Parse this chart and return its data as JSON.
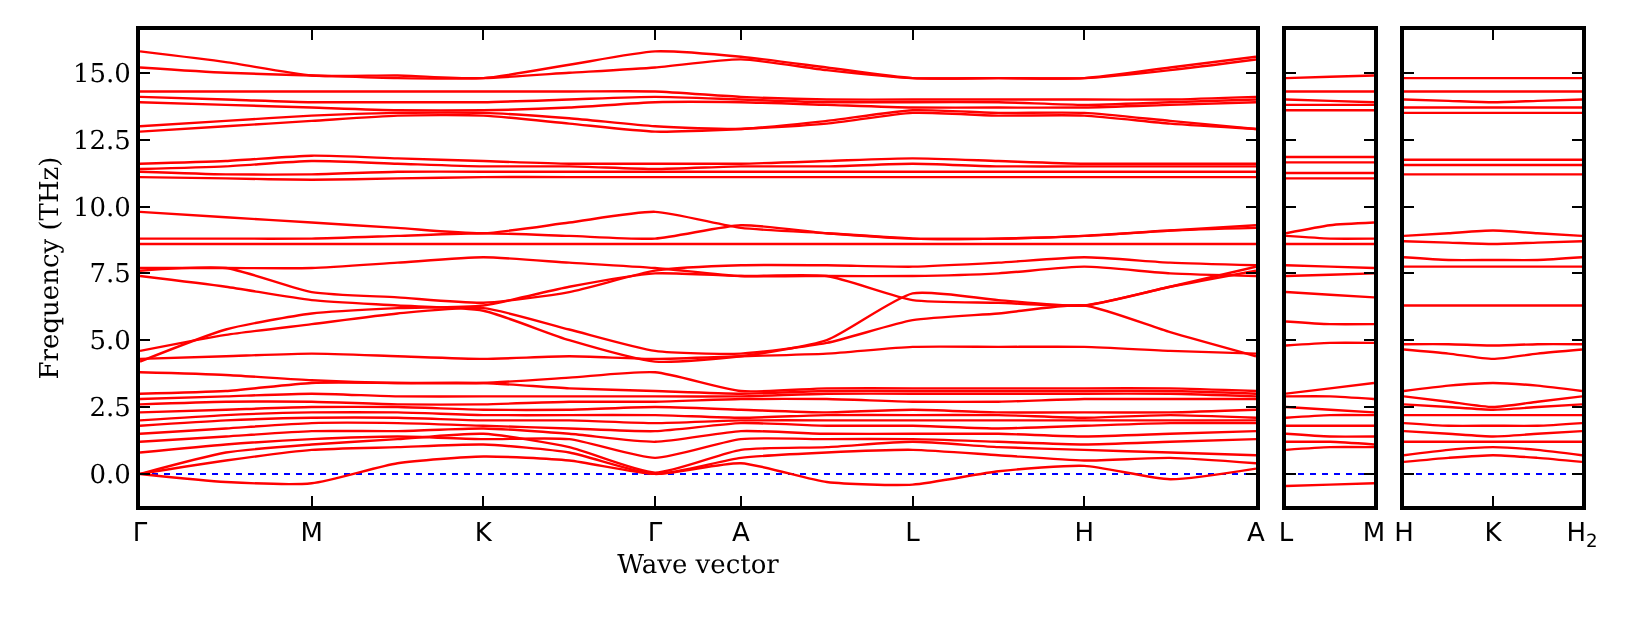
{
  "chart_data": [
    {
      "type": "line",
      "xlabel": "Wave vector",
      "ylabel": "Frequency (THz)",
      "ylim": [
        -1.2,
        16.6
      ],
      "categories": [
        "Γ",
        null,
        "M",
        null,
        "K",
        null,
        "Γ",
        "A",
        null,
        "L",
        null,
        "H",
        null,
        "A"
      ],
      "yticks": [
        {
          "value": 0,
          "label": "0.0"
        },
        {
          "value": 2.5,
          "label": "2.5"
        },
        {
          "value": 5,
          "label": "5.0"
        },
        {
          "value": 7.5,
          "label": "7.5"
        },
        {
          "value": 10,
          "label": "10.0"
        },
        {
          "value": 12.5,
          "label": "12.5"
        },
        {
          "value": 15,
          "label": "15.0"
        }
      ],
      "ref_lines": [
        {
          "axis": "y",
          "value": 0,
          "color": "#0000ff",
          "line_style": "dotted"
        }
      ],
      "series": [
        {
          "color": "#ff0000",
          "values": [
            0,
            -0.3,
            -0.35,
            0.4,
            0.65,
            0.5,
            0,
            0.4,
            -0.3,
            -0.4,
            0.1,
            0.3,
            -0.2,
            0.2
          ]
        },
        {
          "color": "#ff0000",
          "values": [
            0,
            0.5,
            0.9,
            1.0,
            1.1,
            0.8,
            0,
            0.6,
            0.8,
            0.9,
            0.7,
            0.5,
            0.6,
            0.4
          ]
        },
        {
          "color": "#ff0000",
          "values": [
            0,
            0.8,
            1.1,
            1.3,
            1.5,
            1.0,
            0.05,
            0.9,
            1.0,
            1.2,
            1.0,
            0.9,
            0.8,
            0.7
          ]
        },
        {
          "color": "#ff0000",
          "values": [
            0.8,
            1.1,
            1.3,
            1.4,
            1.3,
            1.3,
            0.6,
            1.3,
            1.3,
            1.3,
            1.2,
            1.1,
            1.2,
            1.3
          ]
        },
        {
          "color": "#ff0000",
          "values": [
            1.2,
            1.4,
            1.6,
            1.6,
            1.7,
            1.5,
            1.2,
            1.6,
            1.5,
            1.5,
            1.5,
            1.4,
            1.5,
            1.6
          ]
        },
        {
          "color": "#ff0000",
          "values": [
            1.5,
            1.7,
            1.9,
            1.9,
            1.8,
            1.7,
            1.6,
            1.9,
            1.8,
            1.8,
            1.7,
            1.8,
            1.9,
            1.9
          ]
        },
        {
          "color": "#ff0000",
          "values": [
            1.8,
            2.0,
            2.1,
            2.1,
            2.0,
            2.0,
            1.9,
            2.0,
            2.0,
            2.0,
            2.0,
            2.0,
            2.0,
            2.0
          ]
        },
        {
          "color": "#ff0000",
          "values": [
            2.0,
            2.2,
            2.3,
            2.3,
            2.2,
            2.2,
            2.2,
            2.1,
            2.2,
            2.2,
            2.2,
            2.1,
            2.2,
            2.1
          ]
        },
        {
          "color": "#ff0000",
          "values": [
            2.3,
            2.4,
            2.5,
            2.5,
            2.4,
            2.4,
            2.5,
            2.4,
            2.3,
            2.4,
            2.3,
            2.3,
            2.3,
            2.4
          ]
        },
        {
          "color": "#ff0000",
          "values": [
            2.6,
            2.7,
            2.7,
            2.6,
            2.6,
            2.7,
            2.7,
            2.8,
            2.8,
            2.7,
            2.7,
            2.8,
            2.8,
            2.8
          ]
        },
        {
          "color": "#ff0000",
          "values": [
            2.8,
            2.9,
            3.0,
            2.9,
            2.9,
            2.9,
            2.9,
            2.9,
            3.0,
            3.0,
            3.0,
            3.0,
            3.0,
            2.9
          ]
        },
        {
          "color": "#ff0000",
          "values": [
            3.0,
            3.1,
            3.4,
            3.4,
            3.4,
            3.2,
            3.1,
            3.0,
            3.1,
            3.1,
            3.1,
            3.1,
            3.1,
            3.0
          ]
        },
        {
          "color": "#ff0000",
          "values": [
            3.8,
            3.7,
            3.5,
            3.4,
            3.4,
            3.6,
            3.8,
            3.1,
            3.2,
            3.2,
            3.2,
            3.2,
            3.2,
            3.1
          ]
        },
        {
          "color": "#ff0000",
          "values": [
            4.3,
            4.4,
            4.5,
            4.4,
            4.3,
            4.4,
            4.3,
            4.4,
            4.5,
            4.75,
            4.75,
            4.75,
            4.6,
            4.5
          ]
        },
        {
          "color": "#ff0000",
          "values": [
            4.6,
            5.2,
            5.6,
            6.0,
            6.2,
            5.4,
            4.6,
            4.5,
            4.9,
            5.75,
            6.0,
            6.3,
            5.3,
            4.4
          ]
        },
        {
          "color": "#ff0000",
          "values": [
            4.2,
            5.4,
            6.0,
            6.2,
            6.3,
            7.0,
            7.5,
            7.4,
            7.4,
            6.5,
            6.4,
            6.3,
            7.0,
            7.6
          ]
        },
        {
          "color": "#ff0000",
          "values": [
            7.4,
            7.0,
            6.5,
            6.3,
            6.1,
            5.0,
            4.2,
            4.4,
            5.0,
            6.75,
            6.5,
            6.3,
            7.0,
            7.75
          ]
        },
        {
          "color": "#ff0000",
          "values": [
            7.6,
            7.7,
            6.8,
            6.6,
            6.4,
            6.8,
            7.6,
            7.8,
            7.8,
            7.75,
            7.9,
            8.1,
            7.9,
            7.8
          ]
        },
        {
          "color": "#ff0000",
          "values": [
            7.7,
            7.7,
            7.7,
            7.9,
            8.1,
            7.9,
            7.7,
            7.4,
            7.4,
            7.4,
            7.5,
            7.75,
            7.5,
            7.4
          ]
        },
        {
          "color": "#ff0000",
          "values": [
            9.8,
            9.6,
            9.4,
            9.2,
            9.0,
            9.4,
            9.8,
            9.2,
            9.0,
            8.8,
            8.8,
            8.9,
            9.1,
            9.3
          ]
        },
        {
          "color": "#ff0000",
          "values": [
            8.8,
            8.8,
            8.8,
            8.9,
            9.0,
            8.9,
            8.8,
            9.3,
            9.0,
            8.8,
            8.8,
            8.9,
            9.1,
            9.2
          ]
        },
        {
          "color": "#ff0000",
          "values": [
            8.6,
            8.6,
            8.6,
            8.6,
            8.6,
            8.6,
            8.6,
            8.6,
            8.6,
            8.6,
            8.6,
            8.6,
            8.6,
            8.6
          ]
        },
        {
          "color": "#ff0000",
          "values": [
            11.6,
            11.7,
            11.9,
            11.8,
            11.7,
            11.6,
            11.6,
            11.6,
            11.7,
            11.8,
            11.7,
            11.6,
            11.6,
            11.6
          ]
        },
        {
          "color": "#ff0000",
          "values": [
            11.4,
            11.5,
            11.7,
            11.6,
            11.5,
            11.5,
            11.4,
            11.5,
            11.5,
            11.6,
            11.5,
            11.5,
            11.5,
            11.5
          ]
        },
        {
          "color": "#ff0000",
          "values": [
            11.3,
            11.2,
            11.2,
            11.3,
            11.3,
            11.3,
            11.3,
            11.3,
            11.3,
            11.3,
            11.3,
            11.3,
            11.3,
            11.3
          ]
        },
        {
          "color": "#ff0000",
          "values": [
            11.1,
            11.05,
            11.0,
            11.05,
            11.1,
            11.1,
            11.1,
            11.1,
            11.1,
            11.1,
            11.1,
            11.1,
            11.1,
            11.1
          ]
        },
        {
          "color": "#ff0000",
          "values": [
            15.8,
            15.4,
            14.9,
            14.9,
            14.8,
            15.3,
            15.8,
            15.6,
            15.2,
            14.8,
            14.8,
            14.8,
            15.2,
            15.6
          ]
        },
        {
          "color": "#ff0000",
          "values": [
            15.2,
            15.0,
            14.9,
            14.8,
            14.8,
            15.0,
            15.2,
            15.5,
            15.1,
            14.8,
            14.8,
            14.8,
            15.1,
            15.5
          ]
        },
        {
          "color": "#ff0000",
          "values": [
            14.3,
            14.3,
            14.3,
            14.3,
            14.3,
            14.3,
            14.3,
            14.1,
            14.0,
            14.0,
            14.0,
            14.0,
            14.0,
            14.1
          ]
        },
        {
          "color": "#ff0000",
          "values": [
            14.1,
            14.0,
            13.9,
            13.9,
            13.9,
            14.0,
            14.1,
            14.0,
            13.9,
            13.9,
            13.9,
            13.8,
            13.9,
            14.0
          ]
        },
        {
          "color": "#ff0000",
          "values": [
            13.9,
            13.8,
            13.7,
            13.6,
            13.6,
            13.7,
            13.9,
            13.9,
            13.8,
            13.7,
            13.7,
            13.7,
            13.8,
            13.9
          ]
        },
        {
          "color": "#ff0000",
          "values": [
            13.0,
            13.2,
            13.4,
            13.5,
            13.5,
            13.3,
            13.0,
            12.9,
            13.2,
            13.6,
            13.5,
            13.5,
            13.2,
            12.9
          ]
        },
        {
          "color": "#ff0000",
          "values": [
            12.8,
            13.0,
            13.2,
            13.4,
            13.4,
            13.1,
            12.8,
            12.9,
            13.1,
            13.5,
            13.4,
            13.4,
            13.1,
            12.9
          ]
        }
      ]
    },
    {
      "type": "line",
      "ylim": [
        -1.2,
        16.6
      ],
      "tick_labels": "x",
      "categories": [
        "L",
        null,
        "M"
      ],
      "yticks": [
        {
          "value": 0,
          "label": null
        },
        {
          "value": 2.5,
          "label": null
        },
        {
          "value": 5,
          "label": null
        },
        {
          "value": 7.5,
          "label": null
        },
        {
          "value": 10,
          "label": null
        },
        {
          "value": 12.5,
          "label": null
        },
        {
          "value": 15,
          "label": null
        }
      ],
      "ref_lines": [
        {
          "axis": "y",
          "value": 0,
          "color": "#0000ff",
          "line_style": "dotted"
        }
      ],
      "series": [
        {
          "color": "#ff0000",
          "values": [
            14.8,
            14.85,
            14.9
          ]
        },
        {
          "color": "#ff0000",
          "values": [
            14.3,
            14.3,
            14.3
          ]
        },
        {
          "color": "#ff0000",
          "values": [
            14.0,
            13.95,
            13.9
          ]
        },
        {
          "color": "#ff0000",
          "values": [
            13.8,
            13.8,
            13.8
          ]
        },
        {
          "color": "#ff0000",
          "values": [
            13.6,
            13.6,
            13.6
          ]
        },
        {
          "color": "#ff0000",
          "values": [
            11.85,
            11.85,
            11.85
          ]
        },
        {
          "color": "#ff0000",
          "values": [
            11.65,
            11.65,
            11.65
          ]
        },
        {
          "color": "#ff0000",
          "values": [
            11.25,
            11.25,
            11.25
          ]
        },
        {
          "color": "#ff0000",
          "values": [
            11.05,
            11.05,
            11.05
          ]
        },
        {
          "color": "#ff0000",
          "values": [
            9.0,
            9.3,
            9.4
          ]
        },
        {
          "color": "#ff0000",
          "values": [
            8.9,
            8.8,
            8.8
          ]
        },
        {
          "color": "#ff0000",
          "values": [
            8.6,
            8.6,
            8.6
          ]
        },
        {
          "color": "#ff0000",
          "values": [
            7.8,
            7.75,
            7.7
          ]
        },
        {
          "color": "#ff0000",
          "values": [
            7.4,
            7.45,
            7.5
          ]
        },
        {
          "color": "#ff0000",
          "values": [
            6.8,
            6.7,
            6.6
          ]
        },
        {
          "color": "#ff0000",
          "values": [
            5.7,
            5.6,
            5.6
          ]
        },
        {
          "color": "#ff0000",
          "values": [
            4.8,
            4.9,
            4.9
          ]
        },
        {
          "color": "#ff0000",
          "values": [
            3.0,
            3.2,
            3.4
          ]
        },
        {
          "color": "#ff0000",
          "values": [
            2.9,
            2.9,
            2.8
          ]
        },
        {
          "color": "#ff0000",
          "values": [
            2.5,
            2.4,
            2.3
          ]
        },
        {
          "color": "#ff0000",
          "values": [
            2.1,
            2.2,
            2.2
          ]
        },
        {
          "color": "#ff0000",
          "values": [
            1.8,
            1.8,
            1.8
          ]
        },
        {
          "color": "#ff0000",
          "values": [
            1.5,
            1.4,
            1.4
          ]
        },
        {
          "color": "#ff0000",
          "values": [
            1.2,
            1.2,
            1.1
          ]
        },
        {
          "color": "#ff0000",
          "values": [
            0.9,
            1.0,
            1.0
          ]
        },
        {
          "color": "#ff0000",
          "values": [
            -0.45,
            -0.4,
            -0.35
          ]
        }
      ]
    },
    {
      "type": "line",
      "ylim": [
        -1.2,
        16.6
      ],
      "tick_labels": "x",
      "categories": [
        "H",
        null,
        "K",
        null,
        "H$_{2}$"
      ],
      "yticks": [
        {
          "value": 0,
          "label": null
        },
        {
          "value": 2.5,
          "label": null
        },
        {
          "value": 5,
          "label": null
        },
        {
          "value": 7.5,
          "label": null
        },
        {
          "value": 10,
          "label": null
        },
        {
          "value": 12.5,
          "label": null
        },
        {
          "value": 15,
          "label": null
        }
      ],
      "ref_lines": [
        {
          "axis": "y",
          "value": 0,
          "color": "#0000ff",
          "line_style": "dotted"
        }
      ],
      "series": [
        {
          "color": "#ff0000",
          "values": [
            14.8,
            14.8,
            14.8,
            14.8,
            14.8
          ]
        },
        {
          "color": "#ff0000",
          "values": [
            14.3,
            14.3,
            14.3,
            14.3,
            14.3
          ]
        },
        {
          "color": "#ff0000",
          "values": [
            14.0,
            13.95,
            13.9,
            13.95,
            14.0
          ]
        },
        {
          "color": "#ff0000",
          "values": [
            13.7,
            13.7,
            13.7,
            13.7,
            13.7
          ]
        },
        {
          "color": "#ff0000",
          "values": [
            13.5,
            13.5,
            13.5,
            13.5,
            13.5
          ]
        },
        {
          "color": "#ff0000",
          "values": [
            11.75,
            11.75,
            11.75,
            11.75,
            11.75
          ]
        },
        {
          "color": "#ff0000",
          "values": [
            11.55,
            11.55,
            11.55,
            11.55,
            11.55
          ]
        },
        {
          "color": "#ff0000",
          "values": [
            11.2,
            11.2,
            11.2,
            11.2,
            11.2
          ]
        },
        {
          "color": "#ff0000",
          "values": [
            8.9,
            9.0,
            9.1,
            9.0,
            8.9
          ]
        },
        {
          "color": "#ff0000",
          "values": [
            8.7,
            8.65,
            8.6,
            8.65,
            8.7
          ]
        },
        {
          "color": "#ff0000",
          "values": [
            8.1,
            8.0,
            8.0,
            8.0,
            8.1
          ]
        },
        {
          "color": "#ff0000",
          "values": [
            7.75,
            7.75,
            7.75,
            7.75,
            7.75
          ]
        },
        {
          "color": "#ff0000",
          "values": [
            6.3,
            6.3,
            6.3,
            6.3,
            6.3
          ]
        },
        {
          "color": "#ff0000",
          "values": [
            4.85,
            4.85,
            4.8,
            4.85,
            4.85
          ]
        },
        {
          "color": "#ff0000",
          "values": [
            4.65,
            4.5,
            4.3,
            4.5,
            4.65
          ]
        },
        {
          "color": "#ff0000",
          "values": [
            3.1,
            3.3,
            3.4,
            3.3,
            3.1
          ]
        },
        {
          "color": "#ff0000",
          "values": [
            2.9,
            2.7,
            2.5,
            2.7,
            2.9
          ]
        },
        {
          "color": "#ff0000",
          "values": [
            2.6,
            2.5,
            2.4,
            2.5,
            2.6
          ]
        },
        {
          "color": "#ff0000",
          "values": [
            2.2,
            2.2,
            2.2,
            2.2,
            2.2
          ]
        },
        {
          "color": "#ff0000",
          "values": [
            1.9,
            1.8,
            1.8,
            1.8,
            1.9
          ]
        },
        {
          "color": "#ff0000",
          "values": [
            1.6,
            1.5,
            1.4,
            1.5,
            1.6
          ]
        },
        {
          "color": "#ff0000",
          "values": [
            1.2,
            1.2,
            1.2,
            1.2,
            1.2
          ]
        },
        {
          "color": "#ff0000",
          "values": [
            0.7,
            0.9,
            1.0,
            0.9,
            0.7
          ]
        },
        {
          "color": "#ff0000",
          "values": [
            0.45,
            0.6,
            0.7,
            0.6,
            0.45
          ]
        }
      ]
    }
  ]
}
